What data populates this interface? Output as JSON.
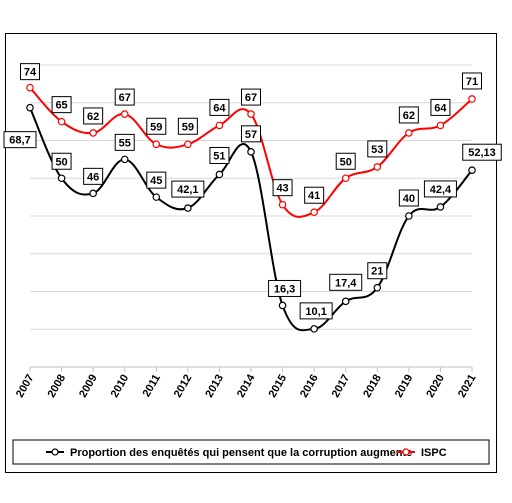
{
  "chart_data": {
    "type": "line",
    "categories": [
      "2007",
      "2008",
      "2009",
      "2010",
      "2011",
      "2012",
      "2013",
      "2014",
      "2015",
      "2016",
      "2017",
      "2018",
      "2019",
      "2020",
      "2021"
    ],
    "series": [
      {
        "name": "Proportion des enquêtés qui pensent que la corruption augmente",
        "color": "#000000",
        "values": [
          68.7,
          50,
          46,
          55,
          45,
          42.1,
          51,
          57,
          16.3,
          10.1,
          17.4,
          21,
          40,
          42.4,
          52.13
        ],
        "labels": [
          "68,7",
          "50",
          "46",
          "55",
          "45",
          "42,1",
          "51",
          "57",
          "16,3",
          "10,1",
          "17,4",
          "21",
          "40",
          "42,4",
          "52,13"
        ]
      },
      {
        "name": "ISPC",
        "color": "#ff0000",
        "values": [
          74,
          65,
          62,
          67,
          59,
          59,
          64,
          67,
          43,
          41,
          50,
          53,
          62,
          64,
          71
        ],
        "labels": [
          "74",
          "65",
          "62",
          "67",
          "59",
          "59",
          "64",
          "67",
          "43",
          "41",
          "50",
          "53",
          "62",
          "64",
          "71"
        ]
      }
    ],
    "ylim": [
      0,
      80
    ],
    "grid": true,
    "legend_position": "bottom"
  }
}
